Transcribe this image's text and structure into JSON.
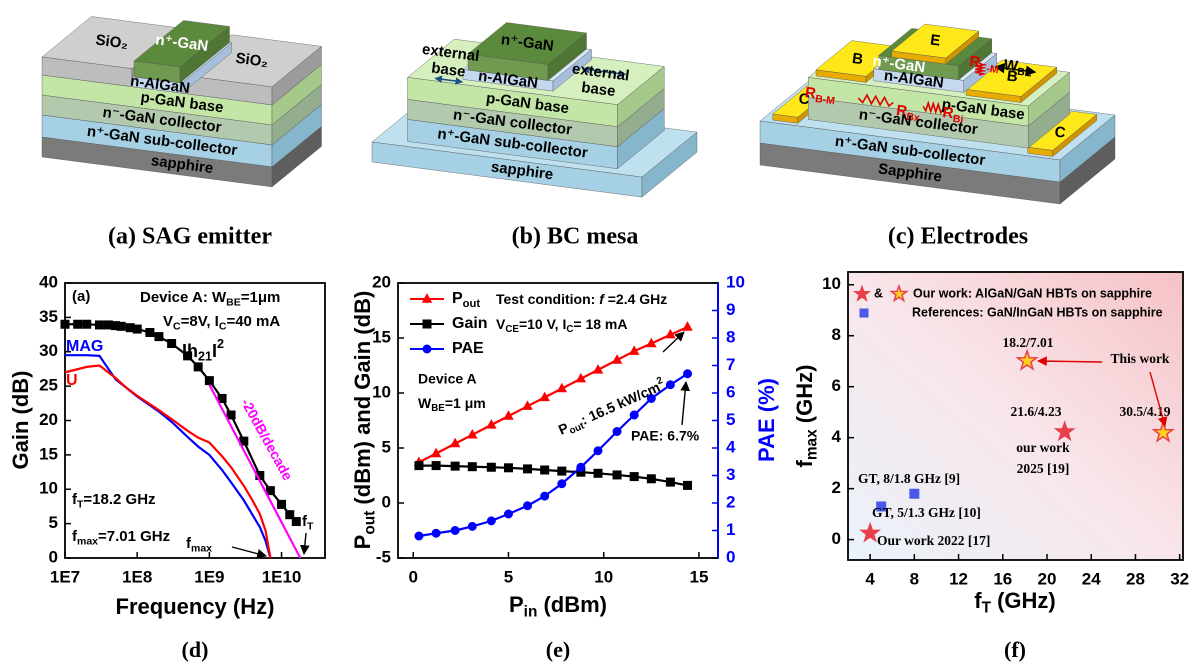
{
  "diagrams": [
    {
      "caption": "(a) SAG emitter",
      "labels": [
        "n⁺-GaN",
        "SiO₂",
        "SiO₂",
        "n-AlGaN",
        "p-GaN base",
        "n⁻-GaN collector",
        "n⁺-GaN sub-collector",
        "sapphire"
      ]
    },
    {
      "caption": "(b) BC mesa",
      "labels": [
        "n⁺-GaN",
        {
          "lines": [
            "external",
            "base"
          ]
        },
        {
          "lines": [
            "external",
            "base"
          ]
        },
        "n-AlGaN",
        "p-GaN base",
        "n⁻-GaN collector",
        "n⁺-GaN sub-collector",
        "sapphire"
      ]
    },
    {
      "caption": "(c) Electrodes",
      "labels": [
        "E",
        "B",
        "B",
        "C",
        "C",
        "n⁺-GaN",
        "n-AlGaN",
        [
          "R",
          {
            "sub": "E-M"
          }
        ],
        [
          "W",
          {
            "sub": "BE"
          }
        ],
        "p-GaN base",
        [
          "R",
          {
            "sub": "B-M"
          }
        ],
        [
          "R",
          {
            "sub": "Bx"
          }
        ],
        [
          "R",
          {
            "sub": "Bi"
          }
        ],
        "n⁻-GaN collector",
        "n⁺-GaN sub-collector",
        "Sapphire"
      ]
    }
  ],
  "chart_data": [
    {
      "type": "line",
      "panel": "(d)",
      "xscale": "log",
      "xlabel": "Frequency (Hz)",
      "ylabel": "Gain (dB)",
      "xlim": [
        10000000,
        40000000000
      ],
      "ylim": [
        0,
        40
      ],
      "xticks": [
        {
          "value": 10000000,
          "label": "1E7"
        },
        {
          "value": 100000000,
          "label": "1E8"
        },
        {
          "value": 1000000000,
          "label": "1E9"
        },
        {
          "value": 10000000000,
          "label": "1E10"
        }
      ],
      "yticks": [
        0,
        5,
        10,
        15,
        20,
        25,
        30,
        35,
        40
      ],
      "series": [
        {
          "name": [
            "Ih",
            {
              "sub": "21"
            },
            "I",
            {
              "sup": "2"
            }
          ],
          "color": "#000000",
          "marker": "square",
          "x": [
            10000000,
            15000000,
            20000000,
            30000000,
            40000000,
            50000000,
            60000000,
            80000000,
            100000000,
            150000000,
            200000000,
            300000000,
            500000000,
            700000000,
            1000000000,
            1500000000,
            2000000000,
            3000000000,
            5000000000,
            7000000000,
            10000000000,
            13000000000,
            16000000000
          ],
          "values": [
            34.0,
            34.0,
            34.0,
            33.9,
            33.9,
            33.8,
            33.7,
            33.5,
            33.3,
            32.8,
            32.2,
            31.2,
            29.4,
            27.8,
            25.8,
            23.2,
            20.8,
            17.0,
            12.0,
            9.8,
            7.8,
            6.3,
            5.3
          ]
        },
        {
          "name": "MAG",
          "color": "#0000ff",
          "marker": "none",
          "x": [
            10000000,
            20000000,
            30000000,
            40000000,
            50000000,
            70000000,
            100000000,
            200000000,
            300000000,
            500000000,
            700000000,
            1000000000,
            1500000000,
            2000000000,
            3000000000,
            4000000000,
            5000000000,
            6000000000,
            7010000000
          ],
          "values": [
            29.5,
            29.5,
            29.4,
            27.5,
            26.0,
            24.8,
            23.5,
            21.3,
            19.8,
            17.6,
            16.2,
            15.0,
            12.8,
            11.0,
            8.4,
            6.2,
            4.5,
            2.5,
            0
          ]
        },
        {
          "name": "U",
          "color": "#ff0000",
          "marker": "none",
          "x": [
            10000000,
            20000000,
            30000000,
            50000000,
            70000000,
            100000000,
            200000000,
            300000000,
            500000000,
            700000000,
            1000000000,
            1500000000,
            2000000000,
            3000000000,
            4000000000,
            5000000000,
            6000000000,
            7010000000
          ],
          "values": [
            27.0,
            27.8,
            28.0,
            26.2,
            24.8,
            23.6,
            21.5,
            20.2,
            18.5,
            17.5,
            16.8,
            14.8,
            13.2,
            10.5,
            8.3,
            6.4,
            4.0,
            0
          ]
        },
        {
          "name": "-20dB/decade",
          "color": "#ff00ff",
          "marker": "none",
          "x": [
            1000000000,
            18200000000
          ],
          "values": [
            25.2,
            0
          ]
        }
      ],
      "annotations": [
        "(a)",
        [
          "Device A: W",
          {
            "sub": "BE"
          },
          "=1μm"
        ],
        [
          "V",
          {
            "sub": "C"
          },
          "=8V, I",
          {
            "sub": "C"
          },
          "=40 mA"
        ],
        [
          "f",
          {
            "sub": "T"
          },
          "=18.2 GHz"
        ],
        [
          "f",
          {
            "sub": "max"
          },
          "=7.01 GHz"
        ],
        [
          "f",
          {
            "sub": "max"
          }
        ],
        [
          "f",
          {
            "sub": "T"
          }
        ]
      ]
    },
    {
      "type": "line",
      "panel": "(e)",
      "xlabel": [
        "P",
        {
          "sub": "in"
        },
        " (dBm)"
      ],
      "ylabel": [
        "P",
        {
          "sub": "out"
        },
        " (dBm) and Gain (dB)"
      ],
      "y2label": "PAE (%)",
      "xlim": [
        -0.8,
        16
      ],
      "ylim": [
        -5,
        20
      ],
      "y2lim": [
        0,
        10
      ],
      "xticks": [
        0,
        5,
        10,
        15
      ],
      "yticks": [
        -5,
        0,
        5,
        10,
        15,
        20
      ],
      "y2ticks": [
        0,
        1,
        2,
        3,
        4,
        5,
        6,
        7,
        8,
        9,
        10
      ],
      "y2color": "#0000ff",
      "x": [
        0.3,
        1.2,
        2.2,
        3.1,
        4.1,
        5.0,
        6.0,
        6.9,
        7.8,
        8.8,
        9.7,
        10.7,
        11.6,
        12.5,
        13.5,
        14.4
      ],
      "series": [
        {
          "name": [
            "P",
            {
              "sub": "out"
            }
          ],
          "color": "#ff0000",
          "marker": "triangle",
          "values": [
            3.7,
            4.5,
            5.4,
            6.2,
            7.1,
            7.9,
            8.8,
            9.6,
            10.4,
            11.3,
            12.1,
            13.0,
            13.8,
            14.5,
            15.3,
            16.0
          ]
        },
        {
          "name": "Gain",
          "color": "#000000",
          "marker": "square",
          "values": [
            3.4,
            3.4,
            3.35,
            3.3,
            3.25,
            3.2,
            3.1,
            3.0,
            2.9,
            2.8,
            2.7,
            2.55,
            2.4,
            2.2,
            1.9,
            1.6
          ]
        },
        {
          "name": "PAE",
          "color": "#0000ff",
          "marker": "circle",
          "axis": "y2",
          "values": [
            0.8,
            0.9,
            1.0,
            1.15,
            1.35,
            1.6,
            1.9,
            2.25,
            2.7,
            3.3,
            3.9,
            4.6,
            5.2,
            5.8,
            6.3,
            6.7
          ]
        }
      ],
      "annotations": [
        [
          "Test condition: ",
          {
            "italic": "f"
          },
          " =2.4 GHz"
        ],
        [
          "V",
          {
            "sub": "CE"
          },
          "=10 V,  I",
          {
            "sub": "C"
          },
          "= 18 mA"
        ],
        "Device A",
        [
          "W",
          {
            "sub": "BE"
          },
          "=1 μm"
        ],
        [
          "P",
          {
            "sub": "out"
          },
          ": 16.5 kW/cm",
          {
            "sup": "2"
          }
        ],
        "PAE: 6.7%"
      ]
    },
    {
      "type": "scatter",
      "panel": "(f)",
      "xlabel": [
        "f",
        {
          "sub": "T"
        },
        " (GHz)"
      ],
      "ylabel": [
        "f",
        {
          "sub": "max"
        },
        " (GHz)"
      ],
      "xlim": [
        2,
        32.3
      ],
      "ylim": [
        -0.8,
        10.5
      ],
      "xticks": [
        4,
        8,
        12,
        16,
        20,
        24,
        28,
        32
      ],
      "yticks": [
        0,
        2,
        4,
        6,
        8,
        10
      ],
      "legend_joiner": "&",
      "series": [
        {
          "color": "#e8404a",
          "marker": "star",
          "x": [
            4,
            21.6
          ],
          "values": [
            0.25,
            4.23
          ]
        },
        {
          "name": "Our work: AlGaN/GaN HBTs on sapphire",
          "color": "#ffd21f",
          "edge": "#e8404a",
          "marker": "star",
          "x": [
            18.2,
            30.5
          ],
          "values": [
            7.01,
            4.19
          ]
        },
        {
          "name": "References: GaN/InGaN HBTs on sapphire",
          "color": "#4a5ae8",
          "marker": "square",
          "x": [
            8,
            5
          ],
          "values": [
            1.8,
            1.3
          ]
        }
      ],
      "annotations": [
        "18.2/7.01",
        "This work",
        "21.6/4.23",
        "our work",
        "2025 [19]",
        "30.5/4.19",
        "GT, 8/1.8 GHz [9]",
        "GT, 5/1.3 GHz [10]",
        "Our work 2022 [17]"
      ]
    }
  ]
}
